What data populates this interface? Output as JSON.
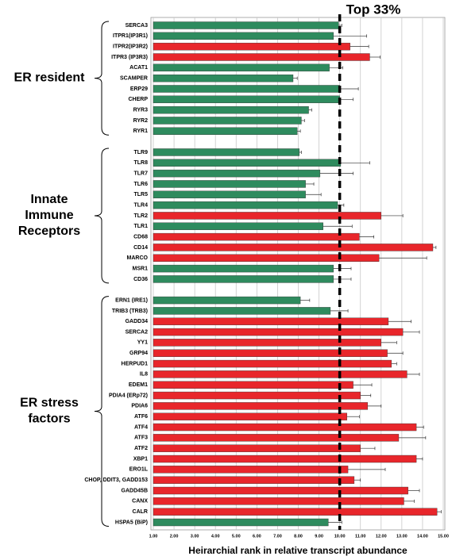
{
  "chart_data": {
    "type": "bar",
    "orientation": "horizontal",
    "annotation": "Top 33%",
    "x_label": "Heirarchial rank in relative transcript abundance",
    "xlim": [
      1,
      15
    ],
    "xticks": [
      {
        "value": 1,
        "label": "1.00"
      },
      {
        "value": 2,
        "label": "2.00"
      },
      {
        "value": 3,
        "label": "3.00"
      },
      {
        "value": 4,
        "label": "4.00"
      },
      {
        "value": 5,
        "label": "5.00"
      },
      {
        "value": 6,
        "label": "6.00"
      },
      {
        "value": 7,
        "label": "7.00"
      },
      {
        "value": 8,
        "label": "8.00"
      },
      {
        "value": 9,
        "label": "9.00"
      },
      {
        "value": 10,
        "label": "10.00"
      },
      {
        "value": 11,
        "label": "11.00"
      },
      {
        "value": 12,
        "label": "12.00"
      },
      {
        "value": 13,
        "label": "13.00"
      },
      {
        "value": 14,
        "label": "14.00"
      },
      {
        "value": 15,
        "label": "15.00"
      }
    ],
    "reference_line": 10,
    "grid": true,
    "groups": [
      {
        "label": [
          "ER resident"
        ],
        "categories": [
          "SERCA3",
          "ITPR1(IP3R1)",
          "ITPR2(IP3R2)",
          "ITPR3 (IP3R3)",
          "ACAT1",
          "SCAMPER",
          "ERP29",
          "CHERP",
          "RYR3",
          "RYR2",
          "RYR1"
        ],
        "values": [
          9.95,
          9.7,
          10.5,
          11.45,
          9.5,
          7.75,
          10.0,
          10.0,
          8.5,
          8.15,
          7.95
        ],
        "errors": [
          0.15,
          1.6,
          0.9,
          0.5,
          0.65,
          0.2,
          0.9,
          0.65,
          0.15,
          0.15,
          0.15
        ],
        "colors": [
          "#2e8b5e",
          "#2e8b5e",
          "#e8262b",
          "#e8262b",
          "#2e8b5e",
          "#2e8b5e",
          "#2e8b5e",
          "#2e8b5e",
          "#2e8b5e",
          "#2e8b5e",
          "#2e8b5e"
        ]
      },
      {
        "label": [
          "Innate",
          "Immune",
          "Receptors"
        ],
        "categories": [
          "TLR9",
          "TLR8",
          "TLR7",
          "TLR6",
          "TLR5",
          "TLR4",
          "TLR2",
          "TLR1",
          "CD68",
          "CD14",
          "MARCO",
          "MSR1",
          "CD36"
        ],
        "values": [
          8.05,
          10.05,
          9.05,
          8.35,
          8.35,
          9.9,
          12.0,
          9.2,
          10.95,
          14.5,
          11.9,
          9.7,
          9.7
        ],
        "errors": [
          0.1,
          1.4,
          1.6,
          0.4,
          0.75,
          0.3,
          1.05,
          1.4,
          0.7,
          0.15,
          2.3,
          0.85,
          0.85
        ],
        "colors": [
          "#2e8b5e",
          "#2e8b5e",
          "#2e8b5e",
          "#2e8b5e",
          "#2e8b5e",
          "#2e8b5e",
          "#e8262b",
          "#2e8b5e",
          "#e8262b",
          "#e8262b",
          "#e8262b",
          "#2e8b5e",
          "#2e8b5e"
        ]
      },
      {
        "label": [
          "ER stress",
          "factors"
        ],
        "categories": [
          "ERN1 (IRE1)",
          "TRIB3 (TRB3)",
          "GADD34",
          "SERCA2",
          "YY1",
          "GRP94",
          "HERPUD1",
          "IL8",
          "EDEM1",
          "PDIA4 (ERp72)",
          "PDIA6",
          "ATF6",
          "ATF4",
          "ATF3",
          "ATF2",
          "XBP1",
          "ERO1L",
          "CHOP, DDIT3, GADD153",
          "GADD45B",
          "CANX",
          "CALR",
          "HSPA5 (BiP)"
        ],
        "values": [
          8.1,
          9.55,
          12.35,
          13.05,
          12.0,
          12.3,
          12.5,
          13.25,
          10.65,
          11.0,
          11.35,
          10.35,
          13.7,
          12.85,
          11.0,
          13.7,
          10.4,
          10.7,
          13.3,
          13.1,
          14.7,
          9.45
        ],
        "errors": [
          0.45,
          0.85,
          1.1,
          0.8,
          0.75,
          0.75,
          0.25,
          0.6,
          0.9,
          0.5,
          0.65,
          0.6,
          0.35,
          1.3,
          0.7,
          0.3,
          1.8,
          0.3,
          0.55,
          0.5,
          0.2,
          0.65
        ],
        "colors": [
          "#2e8b5e",
          "#2e8b5e",
          "#e8262b",
          "#e8262b",
          "#e8262b",
          "#e8262b",
          "#e8262b",
          "#e8262b",
          "#e8262b",
          "#e8262b",
          "#e8262b",
          "#e8262b",
          "#e8262b",
          "#e8262b",
          "#e8262b",
          "#e8262b",
          "#e8262b",
          "#e8262b",
          "#e8262b",
          "#e8262b",
          "#e8262b",
          "#2e8b5e"
        ]
      }
    ]
  }
}
